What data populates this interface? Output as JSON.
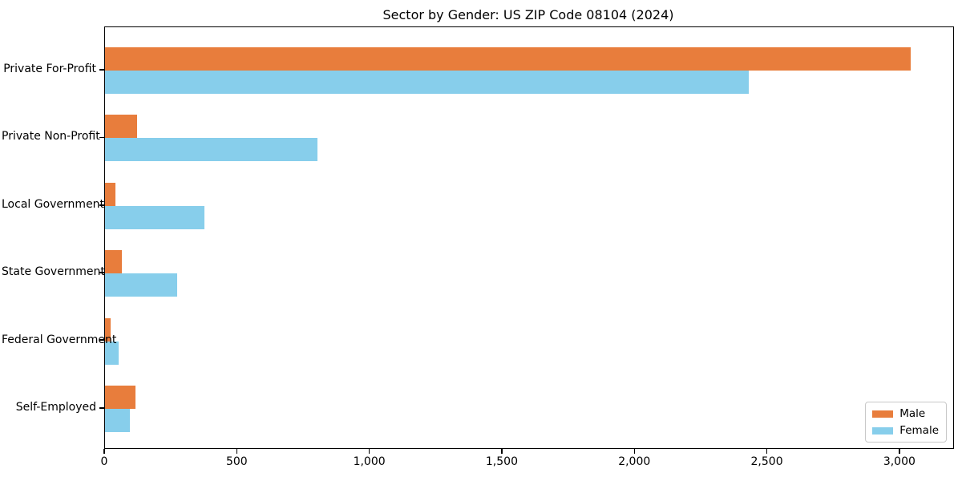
{
  "chart_data": {
    "type": "bar",
    "orientation": "horizontal",
    "title": "Sector by Gender: US ZIP Code 08104 (2024)",
    "categories": [
      "Private For-Profit",
      "Private Non-Profit",
      "Local Government",
      "State Government",
      "Federal Government",
      "Self-Employed"
    ],
    "series": [
      {
        "name": "Male",
        "color": "#e87d3c",
        "values": [
          3040,
          120,
          38,
          63,
          20,
          115
        ]
      },
      {
        "name": "Female",
        "color": "#87ceeb",
        "values": [
          2430,
          800,
          375,
          272,
          50,
          95
        ]
      }
    ],
    "xlabel": "",
    "ylabel": "",
    "xlim": [
      0,
      3200
    ],
    "xticks": {
      "values": [
        0,
        500,
        1000,
        1500,
        2000,
        2500,
        3000
      ],
      "labels": [
        "0",
        "500",
        "1,000",
        "1,500",
        "2,000",
        "2,500",
        "3,000"
      ]
    },
    "grid": false,
    "legend": {
      "position": "lower right",
      "entries": [
        "Male",
        "Female"
      ]
    }
  },
  "colors": {
    "male": "#e87d3c",
    "female": "#87ceeb",
    "spine": "#000000",
    "legend_border": "#c8c8c8",
    "background": "#ffffff"
  }
}
